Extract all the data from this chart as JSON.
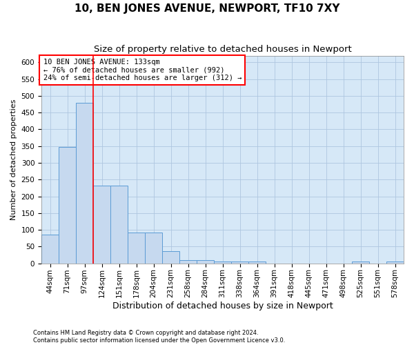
{
  "title": "10, BEN JONES AVENUE, NEWPORT, TF10 7XY",
  "subtitle": "Size of property relative to detached houses in Newport",
  "xlabel": "Distribution of detached houses by size in Newport",
  "ylabel": "Number of detached properties",
  "categories": [
    "44sqm",
    "71sqm",
    "97sqm",
    "124sqm",
    "151sqm",
    "178sqm",
    "204sqm",
    "231sqm",
    "258sqm",
    "284sqm",
    "311sqm",
    "338sqm",
    "364sqm",
    "391sqm",
    "418sqm",
    "445sqm",
    "471sqm",
    "498sqm",
    "525sqm",
    "551sqm",
    "578sqm"
  ],
  "values": [
    85,
    348,
    480,
    232,
    232,
    93,
    93,
    37,
    10,
    10,
    5,
    5,
    5,
    0,
    0,
    0,
    0,
    0,
    5,
    0,
    5
  ],
  "bar_color": "#c6d9ef",
  "bar_edge_color": "#5b9bd5",
  "grid_color": "#aec6e0",
  "background_color": "#d6e8f7",
  "vline_x": 2.5,
  "vline_color": "red",
  "annotation_text": "10 BEN JONES AVENUE: 133sqm\n← 76% of detached houses are smaller (992)\n24% of semi-detached houses are larger (312) →",
  "annotation_box_color": "white",
  "annotation_box_edge_color": "red",
  "footer_text": "Contains HM Land Registry data © Crown copyright and database right 2024.\nContains public sector information licensed under the Open Government Licence v3.0.",
  "ylim": [
    0,
    620
  ],
  "yticks": [
    0,
    50,
    100,
    150,
    200,
    250,
    300,
    350,
    400,
    450,
    500,
    550,
    600
  ],
  "title_fontsize": 11,
  "subtitle_fontsize": 9.5,
  "xlabel_fontsize": 9,
  "ylabel_fontsize": 8,
  "tick_fontsize": 7.5,
  "annot_fontsize": 7.5,
  "footer_fontsize": 6
}
